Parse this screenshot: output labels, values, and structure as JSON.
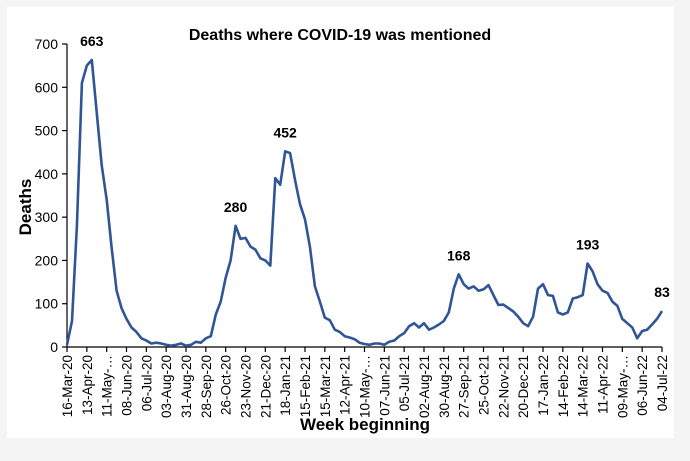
{
  "chart_data": {
    "type": "line",
    "title": "Deaths where COVID-19 was mentioned",
    "xlabel": "Week beginning",
    "ylabel": "Deaths",
    "ylim": [
      0,
      700
    ],
    "yticks": [
      0,
      100,
      200,
      300,
      400,
      500,
      600,
      700
    ],
    "grid": false,
    "legend": "none",
    "line_color": "#2F5597",
    "x_tick_every_weeks": 4,
    "x_tick_labels": [
      "16-Mar-20",
      "13-Apr-20",
      "11-May-…",
      "08-Jun-20",
      "06-Jul-20",
      "03-Aug-20",
      "31-Aug-20",
      "28-Sep-20",
      "26-Oct-20",
      "23-Nov-20",
      "21-Dec-20",
      "18-Jan-21",
      "15-Feb-21",
      "15-Mar-21",
      "12-Apr-21",
      "10-May-…",
      "07-Jun-21",
      "05-Jul-21",
      "02-Aug-21",
      "30-Aug-21",
      "27-Sep-21",
      "25-Oct-21",
      "22-Nov-21",
      "20-Dec-21",
      "17-Jan-22",
      "14-Feb-22",
      "14-Mar-22",
      "11-Apr-22",
      "09-May-…",
      "06-Jun-22",
      "04-Jul-22"
    ],
    "series": [
      {
        "name": "Deaths",
        "values": [
          5,
          60,
          280,
          610,
          650,
          663,
          540,
          420,
          340,
          230,
          130,
          90,
          65,
          45,
          35,
          20,
          15,
          8,
          10,
          8,
          5,
          3,
          5,
          8,
          3,
          5,
          12,
          10,
          20,
          25,
          75,
          105,
          160,
          200,
          280,
          250,
          252,
          232,
          225,
          205,
          200,
          188,
          390,
          375,
          452,
          448,
          385,
          330,
          295,
          230,
          140,
          105,
          68,
          62,
          40,
          35,
          25,
          22,
          18,
          10,
          7,
          5,
          8,
          8,
          5,
          12,
          15,
          25,
          32,
          48,
          55,
          45,
          55,
          40,
          45,
          52,
          60,
          80,
          135,
          168,
          145,
          135,
          140,
          130,
          133,
          143,
          120,
          97,
          98,
          90,
          82,
          70,
          55,
          48,
          70,
          135,
          145,
          120,
          118,
          80,
          75,
          80,
          112,
          115,
          120,
          193,
          175,
          145,
          130,
          125,
          105,
          95,
          65,
          55,
          45,
          20,
          37,
          40,
          52,
          65,
          83
        ]
      }
    ],
    "annotations": [
      {
        "week_index": 5,
        "text": "663"
      },
      {
        "week_index": 34,
        "text": "280"
      },
      {
        "week_index": 44,
        "text": "452"
      },
      {
        "week_index": 79,
        "text": "168"
      },
      {
        "week_index": 105,
        "text": "193"
      },
      {
        "week_index": 120,
        "text": "83"
      }
    ]
  }
}
